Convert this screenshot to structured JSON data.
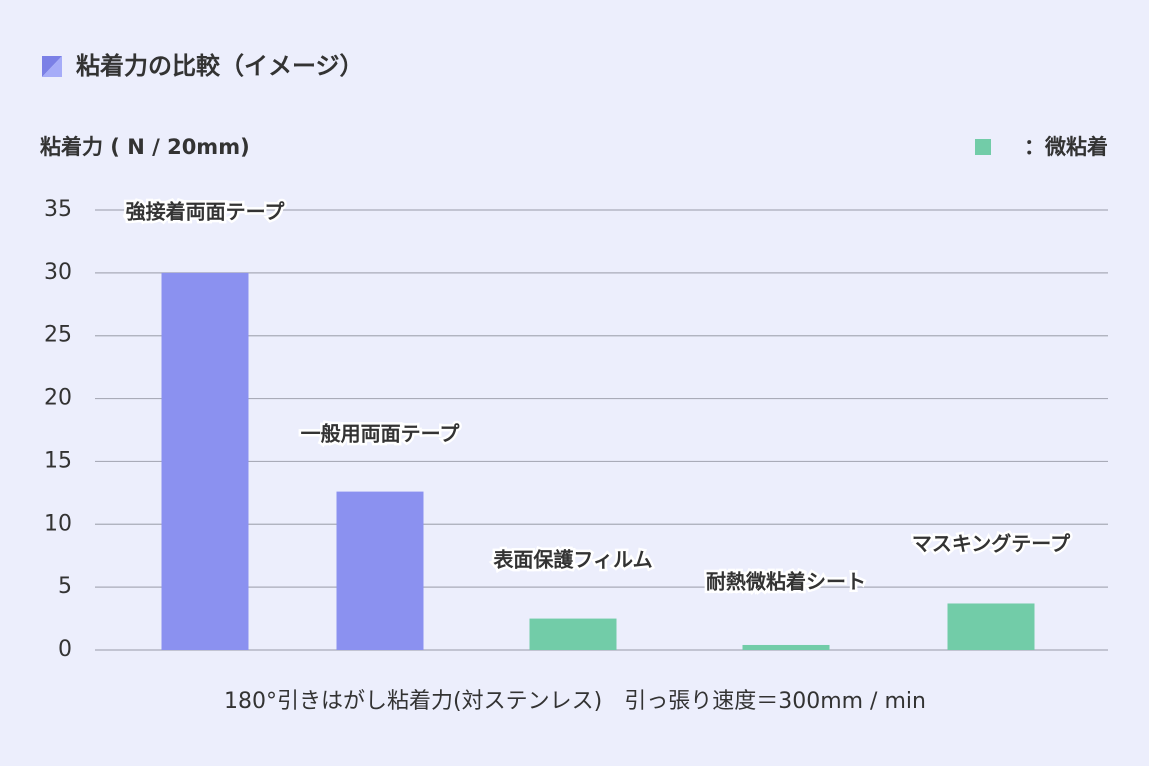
{
  "chart_data": {
    "type": "bar",
    "title": "粘着力の比較（イメージ）",
    "y_label": "粘着力 ( N / 20mm)",
    "note": "180°引きはがし粘着力(対ステンレス)　引っ張り速度＝300mm / min",
    "legend": {
      "label": "：微粘着",
      "color": "#72cca8"
    },
    "categories": [
      "強接着両面テープ",
      "一般用両面テープ",
      "表面保護フィルム",
      "耐熱微粘着シート",
      "マスキングテープ"
    ],
    "values": [
      30,
      12.6,
      2.5,
      0.4,
      3.7
    ],
    "colors": [
      "#8b91f0",
      "#8b91f0",
      "#72cca8",
      "#72cca8",
      "#72cca8"
    ],
    "ylim": [
      0,
      35
    ],
    "yticks": [
      0,
      5,
      10,
      15,
      20,
      25,
      30,
      35
    ],
    "grid": true
  }
}
